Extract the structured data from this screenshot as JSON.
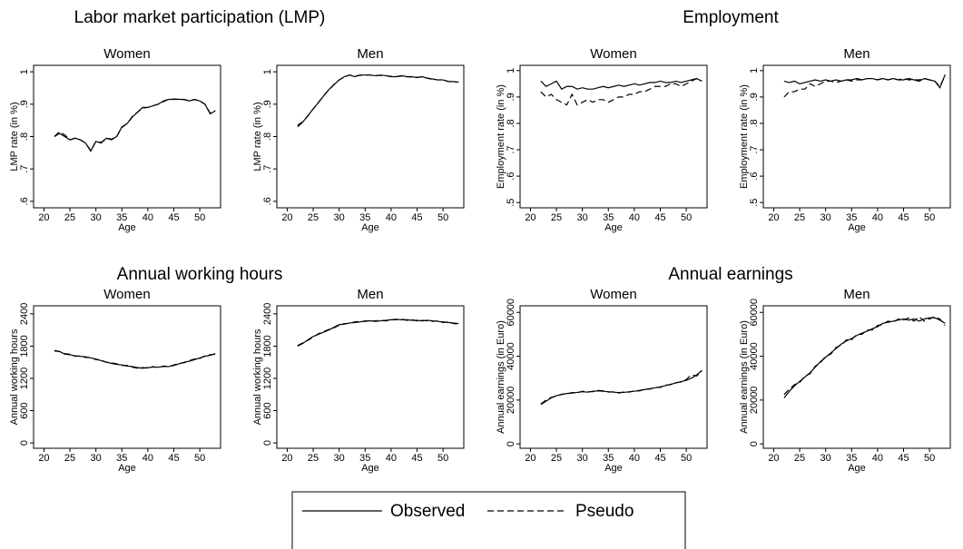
{
  "group_titles": [
    "Labor market participation (LMP)",
    "Employment",
    "Annual working hours",
    "Annual earnings"
  ],
  "chart_data": [
    {
      "type": "line",
      "title": "Women",
      "x_label": "Age",
      "y_label": "LMP rate (in %)",
      "x": [
        22,
        23,
        24,
        25,
        26,
        27,
        28,
        29,
        30,
        31,
        32,
        33,
        34,
        35,
        36,
        37,
        38,
        39,
        40,
        41,
        42,
        43,
        44,
        45,
        46,
        47,
        48,
        49,
        50,
        51,
        52,
        53
      ],
      "xlim": [
        18,
        54
      ],
      "xticks": [
        20,
        25,
        30,
        35,
        40,
        45,
        50
      ],
      "ylim": [
        0.58,
        1.02
      ],
      "yticks": [
        {
          "value": 0.6,
          "label": ".6"
        },
        {
          "value": 0.7,
          "label": ".7"
        },
        {
          "value": 0.8,
          "label": ".8"
        },
        {
          "value": 0.9,
          "label": ".9"
        },
        1
      ],
      "series": [
        {
          "name": "Observed",
          "color": "#000000",
          "line_style": "solid",
          "values": [
            0.8,
            0.81,
            0.8,
            0.79,
            0.795,
            0.79,
            0.78,
            0.755,
            0.785,
            0.78,
            0.795,
            0.79,
            0.8,
            0.83,
            0.84,
            0.86,
            0.875,
            0.89,
            0.89,
            0.895,
            0.9,
            0.91,
            0.915,
            0.915,
            0.915,
            0.915,
            0.91,
            0.915,
            0.91,
            0.9,
            0.87,
            0.88
          ]
        },
        {
          "name": "Pseudo",
          "color": "#000000",
          "line_style": "dashed",
          "values": [
            0.8,
            0.815,
            0.805,
            0.79,
            0.795,
            0.79,
            0.78,
            0.757,
            0.785,
            0.782,
            0.795,
            0.792,
            0.8,
            0.828,
            0.84,
            0.862,
            0.875,
            0.888,
            0.89,
            0.895,
            0.9,
            0.908,
            0.915,
            0.916,
            0.915,
            0.914,
            0.91,
            0.914,
            0.91,
            0.9,
            0.872,
            0.88
          ]
        }
      ]
    },
    {
      "type": "line",
      "title": "Men",
      "x_label": "Age",
      "y_label": "LMP rate (in %)",
      "x": [
        22,
        23,
        24,
        25,
        26,
        27,
        28,
        29,
        30,
        31,
        32,
        33,
        34,
        35,
        36,
        37,
        38,
        39,
        40,
        41,
        42,
        43,
        44,
        45,
        46,
        47,
        48,
        49,
        50,
        51,
        52,
        53
      ],
      "xlim": [
        18,
        54
      ],
      "xticks": [
        20,
        25,
        30,
        35,
        40,
        45,
        50
      ],
      "ylim": [
        0.58,
        1.02
      ],
      "yticks": [
        {
          "value": 0.6,
          "label": ".6"
        },
        {
          "value": 0.7,
          "label": ".7"
        },
        {
          "value": 0.8,
          "label": ".8"
        },
        {
          "value": 0.9,
          "label": ".9"
        },
        1
      ],
      "series": [
        {
          "name": "Observed",
          "color": "#000000",
          "line_style": "solid",
          "values": [
            0.83,
            0.845,
            0.865,
            0.885,
            0.905,
            0.925,
            0.945,
            0.96,
            0.975,
            0.985,
            0.99,
            0.985,
            0.99,
            0.99,
            0.99,
            0.988,
            0.99,
            0.988,
            0.985,
            0.985,
            0.988,
            0.985,
            0.985,
            0.982,
            0.985,
            0.98,
            0.978,
            0.975,
            0.975,
            0.97,
            0.97,
            0.968
          ]
        },
        {
          "name": "Pseudo",
          "color": "#000000",
          "line_style": "dashed",
          "values": [
            0.835,
            0.846,
            0.864,
            0.886,
            0.905,
            0.926,
            0.944,
            0.961,
            0.975,
            0.984,
            0.99,
            0.986,
            0.989,
            0.99,
            0.99,
            0.988,
            0.989,
            0.988,
            0.986,
            0.985,
            0.987,
            0.985,
            0.984,
            0.983,
            0.985,
            0.98,
            0.977,
            0.975,
            0.976,
            0.97,
            0.969,
            0.968
          ]
        }
      ]
    },
    {
      "type": "line",
      "title": "Women",
      "x_label": "Age",
      "y_label": "Employment rate (in %)",
      "x": [
        22,
        23,
        24,
        25,
        26,
        27,
        28,
        29,
        30,
        31,
        32,
        33,
        34,
        35,
        36,
        37,
        38,
        39,
        40,
        41,
        42,
        43,
        44,
        45,
        46,
        47,
        48,
        49,
        50,
        51,
        52,
        53
      ],
      "xlim": [
        18,
        54
      ],
      "xticks": [
        20,
        25,
        30,
        35,
        40,
        45,
        50
      ],
      "ylim": [
        0.48,
        1.02
      ],
      "yticks": [
        {
          "value": 0.5,
          "label": ".5"
        },
        {
          "value": 0.6,
          "label": ".6"
        },
        {
          "value": 0.7,
          "label": ".7"
        },
        {
          "value": 0.8,
          "label": ".8"
        },
        {
          "value": 0.9,
          "label": ".9"
        },
        1
      ],
      "series": [
        {
          "name": "Observed",
          "color": "#000000",
          "line_style": "solid",
          "values": [
            0.96,
            0.94,
            0.95,
            0.96,
            0.93,
            0.94,
            0.94,
            0.93,
            0.935,
            0.93,
            0.93,
            0.935,
            0.94,
            0.935,
            0.94,
            0.945,
            0.94,
            0.945,
            0.95,
            0.945,
            0.95,
            0.955,
            0.955,
            0.96,
            0.955,
            0.955,
            0.96,
            0.955,
            0.96,
            0.965,
            0.97,
            0.96
          ]
        },
        {
          "name": "Pseudo",
          "color": "#000000",
          "line_style": "dashed",
          "values": [
            0.92,
            0.9,
            0.91,
            0.89,
            0.88,
            0.87,
            0.91,
            0.87,
            0.88,
            0.89,
            0.88,
            0.89,
            0.89,
            0.88,
            0.89,
            0.9,
            0.9,
            0.91,
            0.91,
            0.92,
            0.92,
            0.93,
            0.94,
            0.94,
            0.94,
            0.95,
            0.95,
            0.94,
            0.95,
            0.96,
            0.97,
            0.96
          ]
        }
      ]
    },
    {
      "type": "line",
      "title": "Men",
      "x_label": "Age",
      "y_label": "Employment rate (in %)",
      "x": [
        22,
        23,
        24,
        25,
        26,
        27,
        28,
        29,
        30,
        31,
        32,
        33,
        34,
        35,
        36,
        37,
        38,
        39,
        40,
        41,
        42,
        43,
        44,
        45,
        46,
        47,
        48,
        49,
        50,
        51,
        52,
        53
      ],
      "xlim": [
        18,
        54
      ],
      "xticks": [
        20,
        25,
        30,
        35,
        40,
        45,
        50
      ],
      "ylim": [
        0.48,
        1.02
      ],
      "yticks": [
        {
          "value": 0.5,
          "label": ".5"
        },
        {
          "value": 0.6,
          "label": ".6"
        },
        {
          "value": 0.7,
          "label": ".7"
        },
        {
          "value": 0.8,
          "label": ".8"
        },
        {
          "value": 0.9,
          "label": ".9"
        },
        1
      ],
      "series": [
        {
          "name": "Observed",
          "color": "#000000",
          "line_style": "solid",
          "values": [
            0.96,
            0.955,
            0.96,
            0.95,
            0.955,
            0.96,
            0.965,
            0.96,
            0.965,
            0.96,
            0.965,
            0.96,
            0.965,
            0.965,
            0.97,
            0.965,
            0.97,
            0.97,
            0.965,
            0.97,
            0.965,
            0.97,
            0.965,
            0.965,
            0.97,
            0.965,
            0.96,
            0.97,
            0.965,
            0.96,
            0.935,
            0.985
          ]
        },
        {
          "name": "Pseudo",
          "color": "#000000",
          "line_style": "dashed",
          "values": [
            0.9,
            0.92,
            0.92,
            0.93,
            0.93,
            0.95,
            0.94,
            0.95,
            0.96,
            0.96,
            0.955,
            0.96,
            0.965,
            0.96,
            0.965,
            0.965,
            0.97,
            0.97,
            0.965,
            0.97,
            0.965,
            0.97,
            0.965,
            0.97,
            0.965,
            0.965,
            0.965,
            0.97,
            0.965,
            0.96,
            0.94,
            0.98
          ]
        }
      ]
    },
    {
      "type": "line",
      "title": "Women",
      "x_label": "Age",
      "y_label": "Annual working hours",
      "x": [
        22,
        23,
        24,
        25,
        26,
        27,
        28,
        29,
        30,
        31,
        32,
        33,
        34,
        35,
        36,
        37,
        38,
        39,
        40,
        41,
        42,
        43,
        44,
        45,
        46,
        47,
        48,
        49,
        50,
        51,
        52,
        53
      ],
      "xlim": [
        18,
        54
      ],
      "xticks": [
        20,
        25,
        30,
        35,
        40,
        45,
        50
      ],
      "ylim": [
        -100,
        2550
      ],
      "yticks": [
        0,
        600,
        1200,
        1800,
        2400
      ],
      "series": [
        {
          "name": "Observed",
          "color": "#000000",
          "line_style": "solid",
          "values": [
            1720,
            1700,
            1650,
            1640,
            1620,
            1610,
            1600,
            1580,
            1560,
            1530,
            1500,
            1480,
            1460,
            1450,
            1430,
            1420,
            1400,
            1390,
            1400,
            1410,
            1410,
            1420,
            1420,
            1440,
            1470,
            1500,
            1520,
            1550,
            1580,
            1610,
            1630,
            1660
          ]
        },
        {
          "name": "Pseudo",
          "color": "#000000",
          "line_style": "dashed",
          "values": [
            1710,
            1700,
            1660,
            1650,
            1610,
            1620,
            1590,
            1590,
            1550,
            1540,
            1500,
            1490,
            1470,
            1440,
            1440,
            1410,
            1390,
            1400,
            1390,
            1420,
            1400,
            1430,
            1420,
            1450,
            1480,
            1490,
            1530,
            1560,
            1570,
            1620,
            1640,
            1650
          ]
        }
      ]
    },
    {
      "type": "line",
      "title": "Men",
      "x_label": "Age",
      "y_label": "Annual working hours",
      "x": [
        22,
        23,
        24,
        25,
        26,
        27,
        28,
        29,
        30,
        31,
        32,
        33,
        34,
        35,
        36,
        37,
        38,
        39,
        40,
        41,
        42,
        43,
        44,
        45,
        46,
        47,
        48,
        49,
        50,
        51,
        52,
        53
      ],
      "xlim": [
        18,
        54
      ],
      "xticks": [
        20,
        25,
        30,
        35,
        40,
        45,
        50
      ],
      "ylim": [
        -100,
        2550
      ],
      "yticks": [
        0,
        600,
        1200,
        1800,
        2400
      ],
      "series": [
        {
          "name": "Observed",
          "color": "#000000",
          "line_style": "solid",
          "values": [
            1800,
            1850,
            1920,
            1980,
            2020,
            2060,
            2100,
            2150,
            2200,
            2210,
            2230,
            2240,
            2250,
            2270,
            2270,
            2260,
            2270,
            2280,
            2290,
            2300,
            2290,
            2290,
            2280,
            2280,
            2270,
            2280,
            2270,
            2260,
            2250,
            2240,
            2230,
            2220
          ]
        },
        {
          "name": "Pseudo",
          "color": "#000000",
          "line_style": "dashed",
          "values": [
            1810,
            1860,
            1910,
            1970,
            2030,
            2070,
            2110,
            2140,
            2190,
            2220,
            2220,
            2250,
            2260,
            2260,
            2270,
            2270,
            2280,
            2270,
            2290,
            2290,
            2300,
            2280,
            2290,
            2270,
            2280,
            2270,
            2260,
            2270,
            2240,
            2250,
            2220,
            2210
          ]
        }
      ]
    },
    {
      "type": "line",
      "title": "Women",
      "x_label": "Age",
      "y_label": "Annual earnings (in Euro)",
      "x": [
        22,
        23,
        24,
        25,
        26,
        27,
        28,
        29,
        30,
        31,
        32,
        33,
        34,
        35,
        36,
        37,
        38,
        39,
        40,
        41,
        42,
        43,
        44,
        45,
        46,
        47,
        48,
        49,
        50,
        51,
        52,
        53
      ],
      "xlim": [
        18,
        54
      ],
      "xticks": [
        20,
        25,
        30,
        35,
        40,
        45,
        50
      ],
      "ylim": [
        -2000,
        63000
      ],
      "yticks": [
        0,
        20000,
        40000,
        60000
      ],
      "series": [
        {
          "name": "Observed",
          "color": "#000000",
          "line_style": "solid",
          "values": [
            18000,
            19500,
            21000,
            22000,
            22500,
            23000,
            23200,
            23500,
            23800,
            23600,
            24000,
            24200,
            24000,
            23800,
            23600,
            23400,
            23500,
            23800,
            24000,
            24400,
            24800,
            25200,
            25600,
            26000,
            26600,
            27200,
            27800,
            28400,
            29000,
            30000,
            31500,
            33500
          ]
        },
        {
          "name": "Pseudo",
          "color": "#000000",
          "line_style": "dashed",
          "values": [
            18200,
            20000,
            21200,
            21800,
            22700,
            22800,
            23400,
            23300,
            24000,
            23800,
            23800,
            24400,
            24200,
            23600,
            23800,
            23200,
            23700,
            23600,
            24200,
            24200,
            25000,
            25000,
            25800,
            25800,
            26800,
            27000,
            28000,
            28200,
            29400,
            31500,
            31000,
            33000
          ]
        }
      ]
    },
    {
      "type": "line",
      "title": "Men",
      "x_label": "Age",
      "y_label": "Annual earnings (in Euro)",
      "x": [
        22,
        23,
        24,
        25,
        26,
        27,
        28,
        29,
        30,
        31,
        32,
        33,
        34,
        35,
        36,
        37,
        38,
        39,
        40,
        41,
        42,
        43,
        44,
        45,
        46,
        47,
        48,
        49,
        50,
        51,
        52,
        53
      ],
      "xlim": [
        18,
        54
      ],
      "xticks": [
        20,
        25,
        30,
        35,
        40,
        45,
        50
      ],
      "ylim": [
        -2000,
        63000
      ],
      "yticks": [
        0,
        20000,
        40000,
        60000
      ],
      "series": [
        {
          "name": "Observed",
          "color": "#000000",
          "line_style": "solid",
          "values": [
            21000,
            24000,
            26500,
            28500,
            30500,
            32500,
            35000,
            37500,
            39500,
            41500,
            43500,
            45500,
            47000,
            48000,
            49500,
            50500,
            51500,
            52500,
            53500,
            55000,
            55500,
            56000,
            56500,
            57000,
            56500,
            57000,
            56000,
            57000,
            57500,
            57500,
            56500,
            55000
          ]
        },
        {
          "name": "Pseudo",
          "color": "#000000",
          "line_style": "dashed",
          "values": [
            22500,
            25000,
            27000,
            28000,
            31000,
            32000,
            35500,
            37000,
            40000,
            41000,
            44000,
            45000,
            47500,
            47500,
            50000,
            50000,
            52000,
            52000,
            54000,
            54500,
            56000,
            55500,
            57000,
            56500,
            57500,
            56000,
            58000,
            56000,
            57000,
            58000,
            57000,
            54000
          ]
        }
      ]
    }
  ]
}
